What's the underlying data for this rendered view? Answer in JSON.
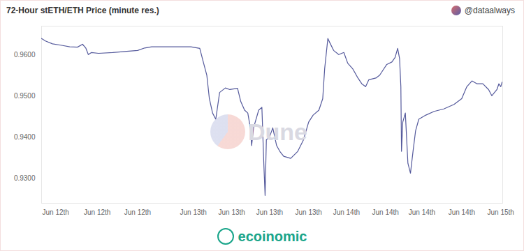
{
  "chart_data": {
    "type": "line",
    "title": "72-Hour stETH/ETH Price (minute res.)",
    "annotations": [
      "@dataalways",
      "Dune",
      "ecoinomic"
    ],
    "x": [
      0,
      0.6,
      1.7,
      3.3,
      4.4,
      5.6,
      6.4,
      6.9,
      7.3,
      7.8,
      8.9,
      11.1,
      13.3,
      15,
      16.1,
      17.2,
      18.9,
      21.1,
      23.3,
      24.7,
      25.3,
      25.8,
      26.2,
      26.7,
      27.2,
      27.8,
      28.7,
      29.4,
      30.6,
      31.1,
      31.7,
      32.2,
      32.6,
      32.8,
      33.1,
      33.9,
      34.4,
      34.7,
      34.9,
      35.1,
      35.6,
      36.1,
      36.7,
      37.2,
      37.8,
      38.9,
      40,
      40.9,
      41.7,
      42.4,
      43.3,
      43.9,
      44.2,
      44.7,
      45,
      45.6,
      46.4,
      47.2,
      47.8,
      48.6,
      49.4,
      50,
      50.6,
      51.1,
      52.2,
      52.8,
      53.3,
      53.9,
      54.7,
      55.2,
      55.6,
      55.9,
      56.1,
      56.2,
      56.4,
      56.8,
      57.2,
      57.6,
      58,
      58.4,
      58.9,
      60,
      61.3,
      62.8,
      64.4,
      65.6,
      66.4,
      67.2,
      68,
      68.9,
      69.8,
      70.3,
      71.1,
      71.4,
      71.7,
      71.9
    ],
    "series": [
      {
        "name": "stETH/ETH",
        "color": "#555a9c",
        "values": [
          0.964,
          0.9634,
          0.9627,
          0.9623,
          0.962,
          0.9619,
          0.9626,
          0.9617,
          0.9601,
          0.9606,
          0.9604,
          0.9606,
          0.9609,
          0.9611,
          0.9617,
          0.962,
          0.962,
          0.962,
          0.962,
          0.9616,
          0.958,
          0.9551,
          0.9494,
          0.9459,
          0.9444,
          0.9509,
          0.952,
          0.9516,
          0.9519,
          0.9487,
          0.9466,
          0.9459,
          0.9423,
          0.938,
          0.9423,
          0.9466,
          0.9473,
          0.9337,
          0.9259,
          0.9394,
          0.9401,
          0.9423,
          0.938,
          0.9366,
          0.9354,
          0.9349,
          0.9366,
          0.9394,
          0.9437,
          0.9454,
          0.9466,
          0.9494,
          0.9566,
          0.964,
          0.963,
          0.9611,
          0.9601,
          0.9606,
          0.958,
          0.9566,
          0.9544,
          0.953,
          0.9523,
          0.954,
          0.9544,
          0.9551,
          0.9563,
          0.9577,
          0.9583,
          0.9594,
          0.9616,
          0.9591,
          0.9523,
          0.9366,
          0.9437,
          0.9459,
          0.9337,
          0.9313,
          0.9366,
          0.9416,
          0.9444,
          0.9454,
          0.9463,
          0.9469,
          0.948,
          0.9494,
          0.9523,
          0.9537,
          0.953,
          0.953,
          0.9516,
          0.9501,
          0.9516,
          0.953,
          0.9523,
          0.9534
        ]
      }
    ],
    "xlim": [
      0,
      72
    ],
    "xticks": [
      {
        "value": 2.2,
        "label": "Jun 12th"
      },
      {
        "value": 8.7,
        "label": "Jun 12th"
      },
      {
        "value": 15,
        "label": "Jun 12th"
      },
      {
        "value": 23.7,
        "label": "Jun 13th"
      },
      {
        "value": 29.7,
        "label": "Jun 13th"
      },
      {
        "value": 35.6,
        "label": "Jun 13th"
      },
      {
        "value": 41.7,
        "label": "Jun 13th"
      },
      {
        "value": 47.6,
        "label": "Jun 14th"
      },
      {
        "value": 53.7,
        "label": "Jun 14th"
      },
      {
        "value": 59.4,
        "label": "Jun 14th"
      },
      {
        "value": 65.6,
        "label": "Jun 14th"
      },
      {
        "value": 71.7,
        "label": "Jun 15th"
      }
    ],
    "ylim": [
      0.924,
      0.967
    ],
    "yticks": [
      {
        "value": 0.93,
        "label": "0.9300"
      },
      {
        "value": 0.94,
        "label": "0.9400"
      },
      {
        "value": 0.95,
        "label": "0.9500"
      },
      {
        "value": 0.96,
        "label": "0.9600"
      }
    ],
    "grid": false
  }
}
